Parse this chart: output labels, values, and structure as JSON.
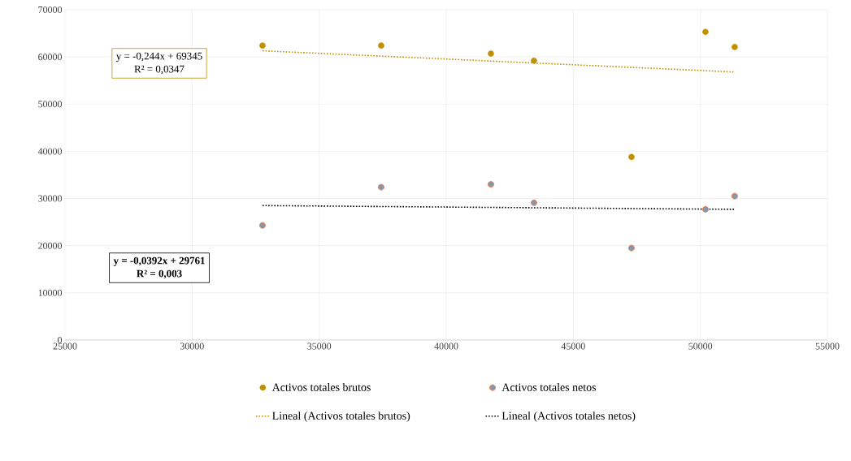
{
  "chart_data": {
    "type": "scatter",
    "xlim": [
      25000,
      55000
    ],
    "xticks": [
      25000,
      30000,
      35000,
      40000,
      45000,
      50000,
      55000
    ],
    "ylim": [
      0,
      70000
    ],
    "yticks": [
      0,
      10000,
      20000,
      30000,
      40000,
      50000,
      60000,
      70000
    ],
    "grid": true,
    "legend": "bottom",
    "series": [
      {
        "name": "Activos totales brutos",
        "marker": "circle",
        "color": "#bf9000",
        "x": [
          32771,
          37440,
          41757,
          43452,
          47290,
          50200,
          51350
        ],
        "values": [
          62400,
          62400,
          60700,
          59200,
          38800,
          65300,
          62100
        ]
      },
      {
        "name": "Activos totales netos",
        "marker": "circle",
        "color": "#8497b0",
        "x": [
          32771,
          37440,
          41757,
          43452,
          47290,
          50200,
          51350
        ],
        "values": [
          24300,
          32400,
          33000,
          29100,
          19500,
          27700,
          30500
        ]
      },
      {
        "name": "Lineal (Activos totales brutos)",
        "type": "line",
        "marker": "none",
        "line_style": "dotted",
        "color": "#bf9000",
        "x": [
          32771,
          51350
        ],
        "values": [
          61300,
          56800
        ]
      },
      {
        "name": "Lineal (Activos totales netos)",
        "type": "line",
        "marker": "none",
        "line_style": "dotted",
        "color": "#000000",
        "x": [
          32771,
          51350
        ],
        "values": [
          28500,
          27700
        ]
      }
    ],
    "annotations": [
      "y = -0,244x + 69345",
      "R² = 0,0347",
      "y = -0,0392x + 29761",
      "R² = 0,003"
    ]
  }
}
